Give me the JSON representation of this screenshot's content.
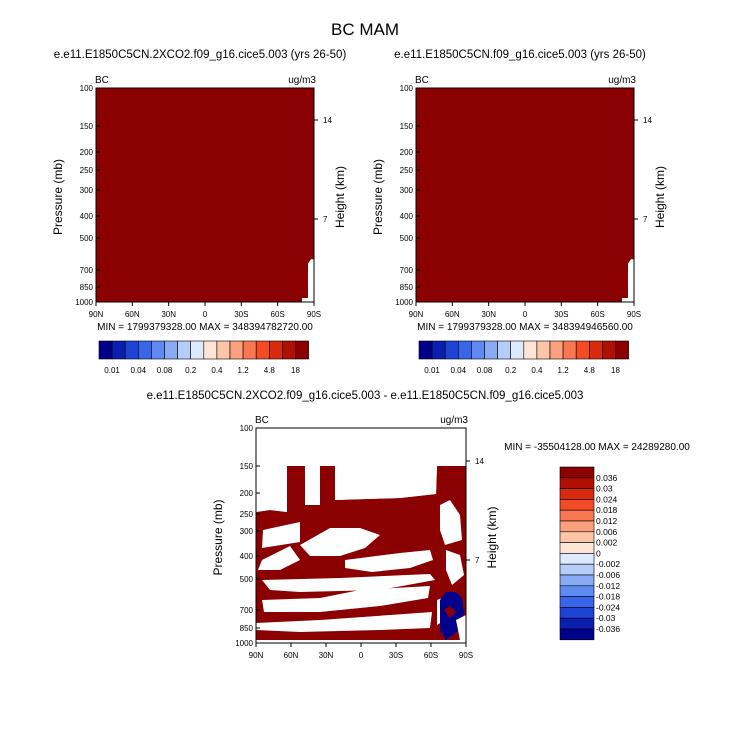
{
  "main_title": "BC MAM",
  "colors": {
    "dark_red": "#8b0000",
    "white": "#ffffff",
    "dark_blue": "#00008b",
    "palette": [
      "#00008b",
      "#0a1fb0",
      "#1f43d4",
      "#3766ea",
      "#5e8af2",
      "#89abf6",
      "#b6ccf9",
      "#dde9fc",
      "#fde4d6",
      "#fcc5a8",
      "#fba07c",
      "#f87750",
      "#f24b25",
      "#d82a0f",
      "#b10e04",
      "#8b0000"
    ]
  },
  "chart_data": [
    {
      "type": "heatmap",
      "title": "e.e11.E1850C5CN.2XCO2.f09_g16.cice5.003 (yrs 26-50)",
      "left_label": "BC",
      "right_label": "ug/m3",
      "ylabel": "Pressure (mb)",
      "ylabel_right": "Height (km)",
      "x_ticks": [
        "90N",
        "60N",
        "30N",
        "0",
        "30S",
        "60S",
        "90S"
      ],
      "y_ticks": [
        "100",
        "150",
        "200",
        "250",
        "300",
        "400",
        "500",
        "700",
        "850",
        "1000"
      ],
      "y_right_ticks": [
        "14",
        "7"
      ],
      "min_max": "MIN = 1799379328.00   MAX = 348394782720.00",
      "colorbar_labels": [
        "0.01",
        "0.04",
        "0.08",
        "0.2",
        "0.4",
        "1.2",
        "4.8",
        "18"
      ],
      "fill": "dark_red"
    },
    {
      "type": "heatmap",
      "title": "e.e11.E1850C5CN.f09_g16.cice5.003 (yrs 26-50)",
      "left_label": "BC",
      "right_label": "ug/m3",
      "ylabel": "Pressure (mb)",
      "ylabel_right": "Height (km)",
      "x_ticks": [
        "90N",
        "60N",
        "30N",
        "0",
        "30S",
        "60S",
        "90S"
      ],
      "y_ticks": [
        "100",
        "150",
        "200",
        "250",
        "300",
        "400",
        "500",
        "700",
        "850",
        "1000"
      ],
      "y_right_ticks": [
        "14",
        "7"
      ],
      "min_max": "MIN = 1799379328.00   MAX = 348394946560.00",
      "colorbar_labels": [
        "0.01",
        "0.04",
        "0.08",
        "0.2",
        "0.4",
        "1.2",
        "4.8",
        "18"
      ],
      "fill": "dark_red"
    },
    {
      "type": "heatmap",
      "title": "e.e11.E1850C5CN.2XCO2.f09_g16.cice5.003 - e.e11.E1850C5CN.f09_g16.cice5.003",
      "left_label": "BC",
      "right_label": "ug/m3",
      "ylabel": "Pressure (mb)",
      "ylabel_right": "Height (km)",
      "x_ticks": [
        "90N",
        "60N",
        "30N",
        "0",
        "30S",
        "60S",
        "90S"
      ],
      "y_ticks": [
        "100",
        "150",
        "200",
        "250",
        "300",
        "400",
        "500",
        "700",
        "850",
        "1000"
      ],
      "y_right_ticks": [
        "14",
        "7"
      ],
      "min_max": "MIN = -35504128.00   MAX = 24289280.00",
      "colorbar_labels": [
        "0.036",
        "0.03",
        "0.024",
        "0.018",
        "0.012",
        "0.006",
        "0.002",
        "0",
        "-0.002",
        "-0.006",
        "-0.012",
        "-0.018",
        "-0.024",
        "-0.03",
        "-0.036"
      ]
    }
  ]
}
